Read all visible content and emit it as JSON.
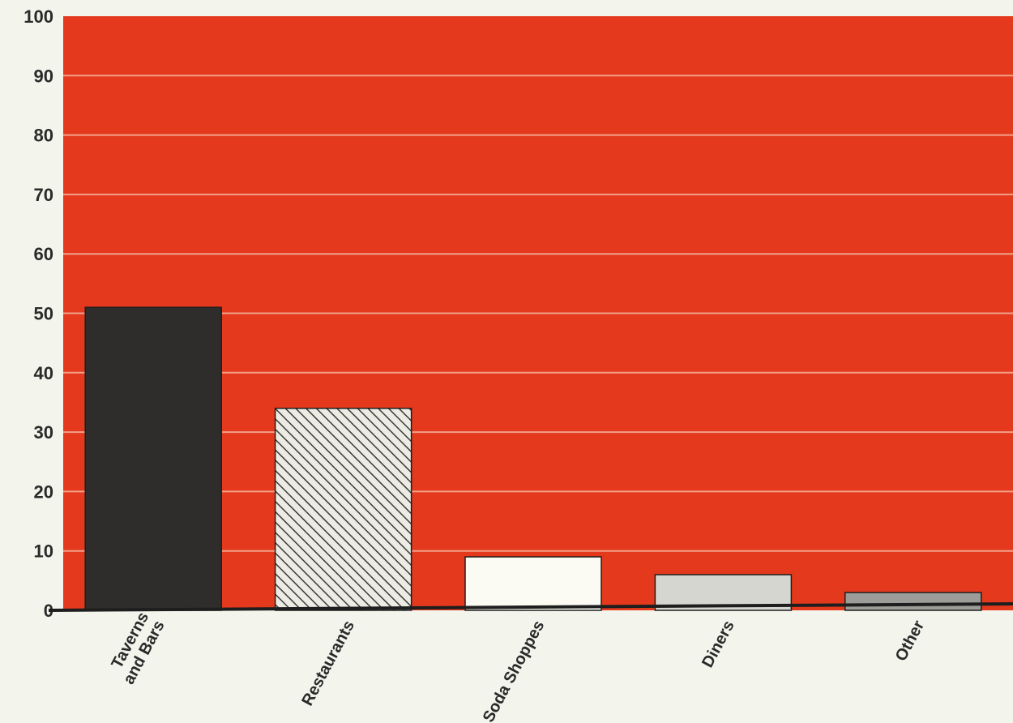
{
  "chart_data": {
    "type": "bar",
    "categories": [
      [
        "Taverns",
        "and Bars"
      ],
      [
        "Restaurants"
      ],
      [
        "Soda Shoppes"
      ],
      [
        "Diners"
      ],
      [
        "Other"
      ]
    ],
    "values": [
      51,
      34,
      9,
      6,
      3
    ],
    "bar_styles": [
      "solid",
      "hatched",
      "solid",
      "solid",
      "solid"
    ],
    "bar_colors": [
      "#2f2d2c",
      "#e9e9e0",
      "#fbfbf4",
      "#d5d6cf",
      "#9c9d98"
    ],
    "yticks": [
      0,
      10,
      20,
      30,
      40,
      50,
      60,
      70,
      80,
      90,
      100
    ],
    "ylim": [
      0,
      100
    ],
    "grid": true,
    "colors": {
      "plot_background": "#e4391c",
      "gridline": "#f2a08a",
      "baseline": "#1e1e1e",
      "page_background": "#f3f4ec",
      "text": "#2a2a2a"
    }
  }
}
